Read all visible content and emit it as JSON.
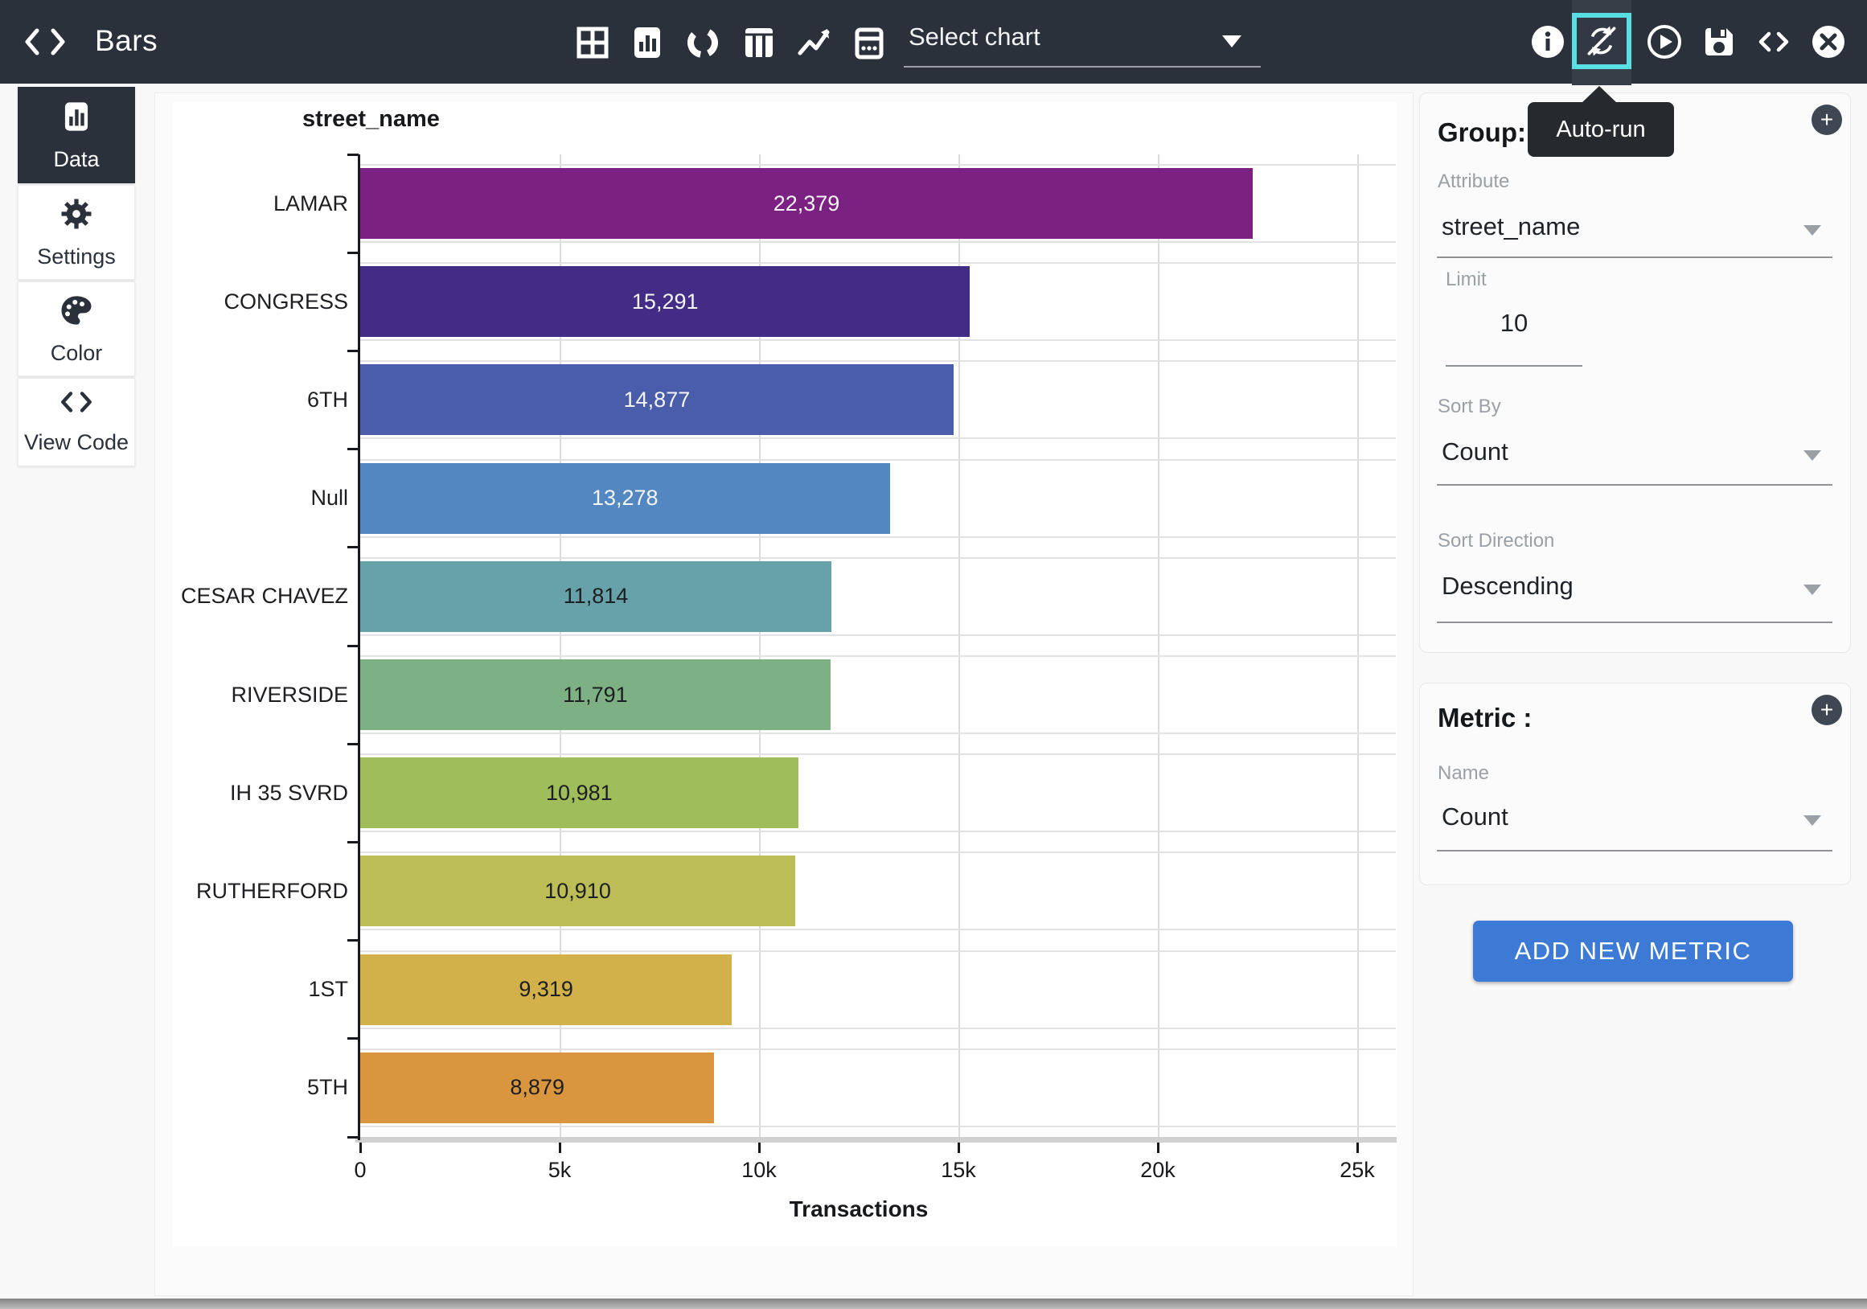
{
  "navbar": {
    "title": "Bars",
    "select_chart_label": "Select chart",
    "tooltip": "Auto-run",
    "chart_type_icons": [
      "table-grid",
      "bar-chart",
      "donut-chart",
      "columns",
      "line-chart",
      "calendar"
    ],
    "action_icons": [
      "info",
      "auto-run",
      "run",
      "save",
      "view-code",
      "close"
    ]
  },
  "sidebar": {
    "items": [
      {
        "label": "Data",
        "icon": "bar-chart-icon",
        "active": true
      },
      {
        "label": "Settings",
        "icon": "gear-icon",
        "active": false
      },
      {
        "label": "Color",
        "icon": "palette-icon",
        "active": false
      },
      {
        "label": "View Code",
        "icon": "code-icon",
        "active": false
      }
    ]
  },
  "chart_data": {
    "type": "bar",
    "orientation": "horizontal",
    "title": "street_name",
    "xlabel": "Transactions",
    "ylabel": "",
    "categories": [
      "LAMAR",
      "CONGRESS",
      "6TH",
      "Null",
      "CESAR CHAVEZ",
      "RIVERSIDE",
      "IH 35 SVRD",
      "RUTHERFORD",
      "1ST",
      "5TH"
    ],
    "values": [
      22379,
      15291,
      14877,
      13278,
      11814,
      11791,
      10981,
      10910,
      9319,
      8879
    ],
    "value_labels": [
      "22,379",
      "15,291",
      "14,877",
      "13,278",
      "11,814",
      "11,791",
      "10,981",
      "10,910",
      "9,319",
      "8,879"
    ],
    "bar_colors": [
      "#7b2182",
      "#432c85",
      "#4a5dab",
      "#5287c1",
      "#67a2aa",
      "#7db184",
      "#a0bd5c",
      "#bcbd57",
      "#d2b04a",
      "#d9963f"
    ],
    "xlim": [
      0,
      25000
    ],
    "x_ticks": [
      "0",
      "5k",
      "10k",
      "15k",
      "20k",
      "25k"
    ],
    "grid": true,
    "legend": false
  },
  "panels": {
    "group": {
      "title": "Group: 1",
      "attribute_label": "Attribute",
      "attribute_value": "street_name",
      "limit_label": "Limit",
      "limit_value": "10",
      "sort_by_label": "Sort By",
      "sort_by_value": "Count",
      "sort_direction_label": "Sort Direction",
      "sort_direction_value": "Descending"
    },
    "metric": {
      "title": "Metric :",
      "name_label": "Name",
      "name_value": "Count"
    },
    "add_metric_button": "ADD NEW METRIC",
    "plus_glyph": "+"
  },
  "colors": {
    "navbar_bg": "#2a313a",
    "accent_cyan": "#57dfe4",
    "button_blue": "#3d7ad5",
    "tooltip_bg": "#26292e"
  }
}
